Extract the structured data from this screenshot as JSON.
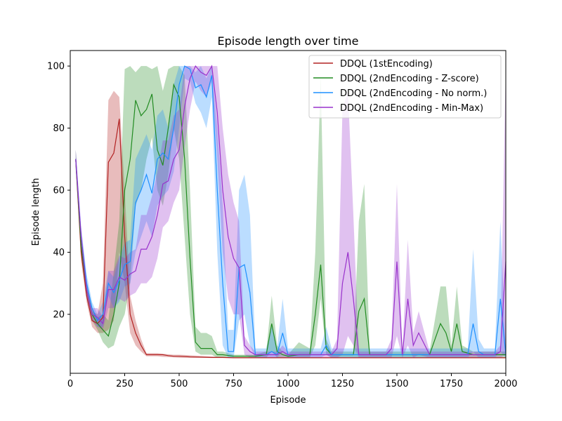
{
  "chart_data": {
    "type": "line",
    "title": "Episode length over time",
    "xlabel": "Episode",
    "ylabel": "Episode length",
    "xlim": [
      0,
      2000
    ],
    "ylim": [
      1,
      105
    ],
    "xticks": [
      0,
      250,
      500,
      750,
      1000,
      1250,
      1500,
      1750,
      2000
    ],
    "yticks": [
      20,
      40,
      60,
      80,
      100
    ],
    "grid": false,
    "legend_position": "top-right",
    "series": [
      {
        "name": "DDQL (1stEncoding)",
        "color": "#b22222",
        "band_opacity": 0.3,
        "x": [
          25,
          50,
          75,
          100,
          125,
          150,
          175,
          200,
          225,
          250,
          275,
          300,
          325,
          350,
          375,
          400,
          425,
          450,
          475,
          500,
          550,
          600,
          650,
          700,
          750,
          800,
          900,
          1000,
          1100,
          1200,
          1300,
          1400,
          1500,
          1600,
          1700,
          1800,
          1900,
          2000
        ],
        "y": [
          70,
          40,
          26,
          18,
          17,
          19,
          69,
          72,
          83,
          45,
          20,
          14,
          10,
          7,
          7,
          7,
          7,
          6.7,
          6.5,
          6.5,
          6.3,
          6.2,
          6.1,
          6.1,
          6.0,
          6.0,
          6.0,
          6.0,
          6.0,
          6.0,
          6.0,
          6.0,
          6.0,
          6.0,
          6.0,
          6.0,
          6.0,
          6.0
        ],
        "lower": [
          67,
          37,
          24,
          16,
          14,
          14,
          15,
          18,
          40,
          30,
          14,
          10,
          8,
          6.5,
          6.5,
          6.5,
          6.3,
          6.2,
          6.1,
          6.0,
          6.0,
          6.0,
          5.9,
          5.9,
          5.9,
          5.9,
          5.9,
          5.9,
          5.9,
          5.9,
          5.9,
          5.9,
          5.9,
          5.9,
          5.9,
          5.9,
          5.9,
          5.9
        ],
        "upper": [
          73,
          43,
          28,
          21,
          20,
          30,
          89,
          92,
          90,
          60,
          26,
          18,
          12,
          7.5,
          7.5,
          7.5,
          7.3,
          7.1,
          7,
          7,
          6.8,
          6.6,
          6.4,
          6.3,
          6.2,
          6.2,
          6.2,
          6.2,
          6.2,
          6.2,
          6.2,
          6.2,
          6.2,
          6.2,
          6.2,
          6.2,
          6.2,
          6.2
        ]
      },
      {
        "name": "DDQL (2ndEncoding - Z-score)",
        "color": "#228b22",
        "band_opacity": 0.3,
        "x": [
          25,
          50,
          75,
          100,
          125,
          150,
          175,
          200,
          225,
          250,
          275,
          300,
          325,
          350,
          375,
          400,
          425,
          450,
          475,
          500,
          525,
          550,
          575,
          600,
          625,
          650,
          675,
          700,
          750,
          800,
          850,
          900,
          925,
          950,
          975,
          1000,
          1050,
          1100,
          1125,
          1150,
          1175,
          1200,
          1250,
          1300,
          1325,
          1350,
          1375,
          1400,
          1450,
          1500,
          1525,
          1550,
          1600,
          1650,
          1700,
          1725,
          1750,
          1775,
          1800,
          1850,
          1900,
          1950,
          2000
        ],
        "y": [
          70,
          42,
          28,
          20,
          17,
          15,
          13,
          20,
          30,
          60,
          70,
          89,
          84,
          86,
          91,
          73,
          68,
          80,
          94,
          90,
          70,
          38,
          11,
          9,
          9,
          9,
          7,
          7,
          6.5,
          6.5,
          6.5,
          7,
          17,
          8,
          7,
          6.5,
          7,
          7,
          20,
          36,
          9,
          7,
          7,
          7,
          21,
          25,
          7,
          7,
          7,
          7,
          7,
          7,
          7,
          7,
          17,
          14,
          8,
          17,
          8,
          7,
          7,
          7,
          7
        ],
        "lower": [
          67,
          39,
          26,
          18,
          15,
          11,
          9,
          10,
          16,
          20,
          30,
          55,
          60,
          70,
          77,
          60,
          55,
          65,
          80,
          70,
          45,
          20,
          8,
          7,
          7,
          7,
          6,
          6,
          6,
          6,
          6,
          6,
          8,
          6,
          6,
          6,
          6,
          6,
          10,
          25,
          7,
          6,
          6,
          6,
          6,
          6,
          6,
          6,
          6,
          6,
          6,
          6,
          6,
          6,
          6,
          6,
          6,
          6,
          6,
          6,
          6,
          6,
          6
        ],
        "upper": [
          73,
          45,
          30,
          22,
          19,
          20,
          18,
          34,
          50,
          99,
          100,
          98,
          100,
          100,
          99,
          100,
          92,
          99,
          100,
          100,
          97,
          60,
          16,
          14,
          14,
          13,
          8,
          8,
          7,
          7,
          7,
          8,
          26,
          10,
          8,
          7,
          11,
          9,
          40,
          97,
          12,
          8,
          8,
          8,
          50,
          62,
          8,
          8,
          8,
          8,
          8,
          8,
          8,
          8,
          29,
          29,
          10,
          29,
          10,
          8,
          8,
          8,
          8
        ]
      },
      {
        "name": "DDQL (2ndEncoding - No norm.)",
        "color": "#1e90ff",
        "band_opacity": 0.3,
        "x": [
          25,
          50,
          75,
          100,
          125,
          150,
          175,
          200,
          225,
          250,
          275,
          300,
          325,
          350,
          375,
          400,
          425,
          450,
          475,
          500,
          525,
          550,
          575,
          600,
          625,
          650,
          675,
          700,
          725,
          750,
          775,
          800,
          825,
          850,
          875,
          900,
          925,
          950,
          975,
          1000,
          1050,
          1100,
          1125,
          1150,
          1175,
          1200,
          1250,
          1300,
          1350,
          1400,
          1450,
          1500,
          1550,
          1600,
          1700,
          1800,
          1825,
          1850,
          1875,
          1900,
          1925,
          1950,
          1975,
          2000
        ],
        "y": [
          70,
          45,
          30,
          22,
          18,
          20,
          30,
          27,
          31,
          36,
          37,
          56,
          60,
          65,
          59,
          70,
          72,
          70,
          80,
          94,
          100,
          99,
          93,
          94,
          90,
          97,
          60,
          30,
          8,
          8,
          35,
          36,
          27,
          7,
          7,
          7,
          8,
          7,
          14,
          7,
          7,
          7,
          7,
          7,
          10,
          7,
          7,
          7,
          7,
          7,
          7,
          7,
          7,
          7,
          7,
          7,
          7,
          17,
          8,
          7,
          7,
          7,
          25,
          7
        ],
        "lower": [
          67,
          42,
          27,
          20,
          16,
          16,
          26,
          22,
          24,
          29,
          30,
          40,
          45,
          50,
          45,
          55,
          58,
          60,
          66,
          80,
          96,
          95,
          88,
          85,
          80,
          90,
          40,
          10,
          6,
          6,
          18,
          20,
          10,
          6,
          6,
          6,
          6,
          6,
          8,
          6,
          6,
          6,
          6,
          6,
          7,
          6,
          6,
          6,
          6,
          6,
          6,
          6,
          6,
          6,
          6,
          6,
          6,
          8,
          6,
          6,
          6,
          6,
          8,
          6
        ],
        "upper": [
          73,
          48,
          33,
          24,
          20,
          24,
          34,
          32,
          38,
          43,
          44,
          70,
          74,
          78,
          73,
          84,
          86,
          80,
          94,
          100,
          100,
          100,
          98,
          100,
          96,
          100,
          80,
          55,
          15,
          15,
          60,
          65,
          52,
          9,
          9,
          9,
          16,
          9,
          25,
          9,
          9,
          9,
          9,
          9,
          16,
          9,
          9,
          9,
          9,
          9,
          9,
          9,
          9,
          9,
          9,
          9,
          9,
          41,
          12,
          9,
          9,
          9,
          50,
          9
        ]
      },
      {
        "name": "DDQL (2ndEncoding - Min-Max)",
        "color": "#9932cc",
        "band_opacity": 0.3,
        "x": [
          25,
          50,
          75,
          100,
          125,
          150,
          175,
          200,
          225,
          250,
          275,
          300,
          325,
          350,
          375,
          400,
          425,
          450,
          475,
          500,
          525,
          550,
          575,
          600,
          625,
          650,
          675,
          700,
          725,
          750,
          775,
          800,
          825,
          850,
          875,
          900,
          925,
          950,
          975,
          1000,
          1050,
          1100,
          1150,
          1200,
          1225,
          1250,
          1275,
          1300,
          1325,
          1350,
          1375,
          1400,
          1450,
          1475,
          1500,
          1525,
          1550,
          1575,
          1600,
          1650,
          1700,
          1800,
          1900,
          1950,
          1975,
          2000
        ],
        "y": [
          70,
          45,
          28,
          20,
          19,
          17,
          28,
          28,
          32,
          31,
          33,
          34,
          41,
          41,
          45,
          52,
          62,
          63,
          70,
          73,
          87,
          96,
          100,
          98,
          97,
          100,
          85,
          60,
          45,
          38,
          35,
          10,
          8,
          7,
          7,
          7,
          7,
          7,
          8,
          7,
          7,
          7,
          7,
          7,
          9,
          30,
          40,
          25,
          7,
          7,
          7,
          7,
          7,
          9,
          37,
          7,
          25,
          10,
          14,
          7,
          7,
          7,
          7,
          7,
          8,
          37
        ],
        "lower": [
          67,
          42,
          25,
          18,
          16,
          15,
          22,
          22,
          25,
          24,
          26,
          27,
          30,
          30,
          32,
          38,
          48,
          50,
          56,
          60,
          74,
          86,
          95,
          92,
          90,
          95,
          70,
          40,
          25,
          20,
          20,
          7,
          6,
          6,
          6,
          6,
          6,
          6,
          6,
          6,
          6,
          6,
          6,
          6,
          6,
          7,
          13,
          10,
          6,
          6,
          6,
          6,
          6,
          6,
          13,
          6,
          10,
          6,
          7,
          6,
          6,
          6,
          6,
          6,
          6,
          7
        ],
        "upper": [
          73,
          48,
          31,
          22,
          22,
          19,
          34,
          34,
          39,
          38,
          40,
          41,
          52,
          52,
          58,
          66,
          76,
          76,
          84,
          86,
          100,
          100,
          100,
          100,
          100,
          100,
          100,
          80,
          65,
          56,
          50,
          13,
          10,
          8,
          8,
          8,
          8,
          8,
          10,
          8,
          8,
          8,
          8,
          8,
          12,
          86,
          92,
          52,
          8,
          8,
          8,
          8,
          8,
          12,
          62,
          8,
          44,
          14,
          21,
          8,
          8,
          8,
          8,
          8,
          10,
          100
        ]
      }
    ]
  }
}
